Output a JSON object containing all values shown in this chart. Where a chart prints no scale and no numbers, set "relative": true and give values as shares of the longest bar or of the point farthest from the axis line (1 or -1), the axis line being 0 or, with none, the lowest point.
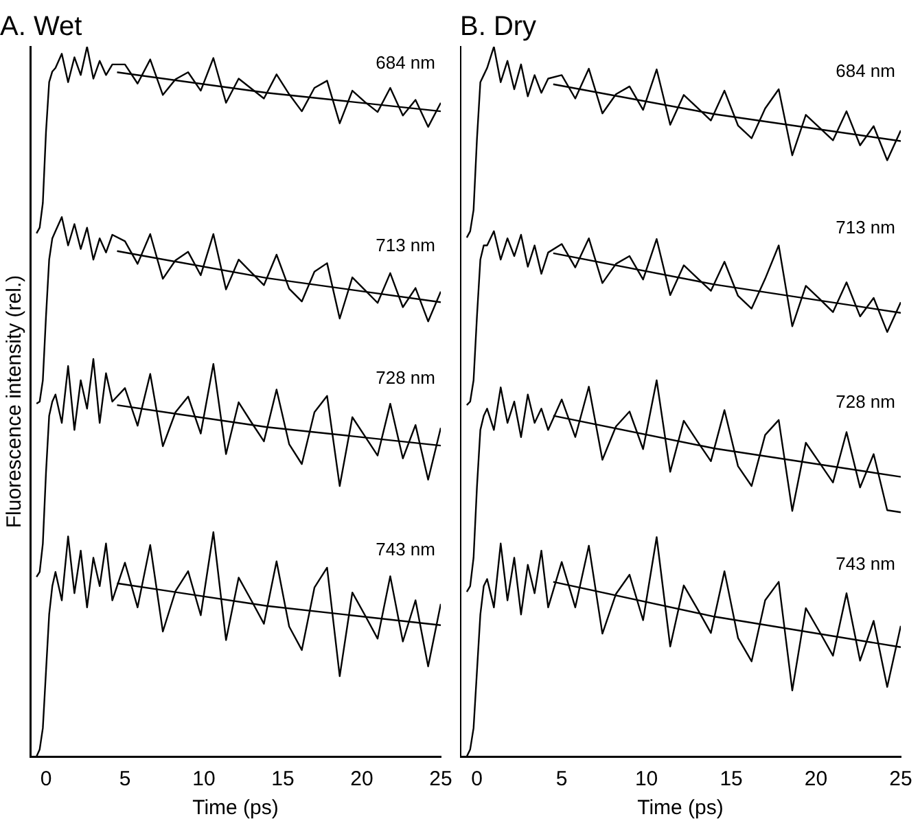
{
  "chart_data": [
    {
      "type": "line",
      "title": "A. Wet",
      "xlabel": "Time (ps)",
      "ylabel": "Fluorescence intensity (rel.)",
      "relative": true,
      "xlim": [
        -1,
        25
      ],
      "xticks": [
        0,
        5,
        10,
        15,
        20,
        25
      ],
      "x": [
        -0.6,
        -0.4,
        -0.2,
        0,
        0.2,
        0.4,
        0.6,
        1,
        1.4,
        1.8,
        2.2,
        2.6,
        3,
        3.4,
        3.8,
        4.2,
        5,
        5.8,
        6.6,
        7.4,
        8.2,
        9,
        9.8,
        10.6,
        11.4,
        12.2,
        13,
        13.8,
        14.6,
        15.4,
        16.2,
        17,
        17.8,
        18.6,
        19.4,
        20.2,
        21,
        21.8,
        22.6,
        23.4,
        24.2,
        25
      ],
      "series": [
        {
          "name": "684 nm",
          "color": "#000000",
          "values": [
            0.737,
            0.745,
            0.78,
            0.88,
            0.95,
            0.965,
            0.97,
            0.99,
            0.95,
            0.985,
            0.96,
            1,
            0.955,
            0.98,
            0.96,
            0.975,
            0.975,
            0.948,
            0.982,
            0.932,
            0.954,
            0.964,
            0.938,
            0.984,
            0.921,
            0.955,
            0.941,
            0.927,
            0.961,
            0.933,
            0.909,
            0.942,
            0.952,
            0.892,
            0.938,
            0.922,
            0.908,
            0.942,
            0.903,
            0.925,
            0.887,
            0.921
          ]
        },
        {
          "name": "713 nm",
          "color": "#000000",
          "values": [
            0.497,
            0.5,
            0.53,
            0.62,
            0.7,
            0.73,
            0.74,
            0.76,
            0.72,
            0.75,
            0.715,
            0.745,
            0.7,
            0.73,
            0.71,
            0.735,
            0.726,
            0.694,
            0.736,
            0.673,
            0.699,
            0.711,
            0.678,
            0.736,
            0.658,
            0.7,
            0.682,
            0.664,
            0.707,
            0.659,
            0.641,
            0.683,
            0.695,
            0.617,
            0.675,
            0.657,
            0.639,
            0.681,
            0.633,
            0.66,
            0.613,
            0.655
          ]
        },
        {
          "name": "728 nm",
          "color": "#000000",
          "values": [
            0.253,
            0.26,
            0.3,
            0.4,
            0.48,
            0.5,
            0.51,
            0.47,
            0.55,
            0.46,
            0.53,
            0.49,
            0.56,
            0.47,
            0.54,
            0.5,
            0.519,
            0.466,
            0.539,
            0.437,
            0.485,
            0.507,
            0.455,
            0.553,
            0.426,
            0.499,
            0.471,
            0.444,
            0.517,
            0.44,
            0.412,
            0.485,
            0.508,
            0.381,
            0.478,
            0.451,
            0.424,
            0.497,
            0.42,
            0.467,
            0.39,
            0.463
          ]
        },
        {
          "name": "743 nm",
          "color": "#000000",
          "values": [
            0,
            0.01,
            0.04,
            0.12,
            0.2,
            0.24,
            0.26,
            0.22,
            0.31,
            0.23,
            0.29,
            0.21,
            0.28,
            0.24,
            0.3,
            0.22,
            0.273,
            0.21,
            0.298,
            0.176,
            0.233,
            0.261,
            0.199,
            0.316,
            0.164,
            0.252,
            0.22,
            0.187,
            0.275,
            0.183,
            0.15,
            0.238,
            0.266,
            0.113,
            0.231,
            0.199,
            0.166,
            0.254,
            0.162,
            0.22,
            0.127,
            0.215
          ]
        },
        {
          "color": "#000000",
          "x": [
            4.5,
            14,
            25
          ],
          "values": [
            0.964,
            0.935,
            0.909
          ]
        },
        {
          "color": "#000000",
          "x": [
            4.5,
            14,
            25
          ],
          "values": [
            0.712,
            0.674,
            0.64
          ]
        },
        {
          "color": "#000000",
          "x": [
            4.5,
            14,
            25
          ],
          "values": [
            0.495,
            0.464,
            0.438
          ]
        },
        {
          "color": "#000000",
          "x": [
            4.5,
            14,
            25
          ],
          "values": [
            0.244,
            0.212,
            0.185
          ]
        }
      ]
    },
    {
      "type": "line",
      "title": "B. Dry",
      "xlabel": "Time (ps)",
      "relative": true,
      "xlim": [
        -1,
        25
      ],
      "xticks": [
        0,
        5,
        10,
        15,
        20,
        25
      ],
      "x": [
        -0.6,
        -0.4,
        -0.2,
        0,
        0.2,
        0.4,
        0.6,
        1,
        1.4,
        1.8,
        2.2,
        2.6,
        3,
        3.4,
        3.8,
        4.2,
        5,
        5.8,
        6.6,
        7.4,
        8.2,
        9,
        9.8,
        10.6,
        11.4,
        12.2,
        13,
        13.8,
        14.6,
        15.4,
        16.2,
        17,
        17.8,
        18.6,
        19.4,
        20.2,
        21,
        21.8,
        22.6,
        23.4,
        24.2,
        25
      ],
      "series": [
        {
          "name": "684 nm",
          "color": "#000000",
          "values": [
            0.731,
            0.74,
            0.77,
            0.87,
            0.95,
            0.96,
            0.97,
            1,
            0.95,
            0.98,
            0.94,
            0.975,
            0.93,
            0.96,
            0.935,
            0.955,
            0.96,
            0.927,
            0.969,
            0.906,
            0.933,
            0.944,
            0.911,
            0.968,
            0.89,
            0.932,
            0.914,
            0.896,
            0.938,
            0.889,
            0.871,
            0.913,
            0.94,
            0.847,
            0.904,
            0.886,
            0.868,
            0.909,
            0.861,
            0.888,
            0.84,
            0.882
          ]
        },
        {
          "name": "713 nm",
          "color": "#000000",
          "values": [
            0.495,
            0.5,
            0.53,
            0.62,
            0.7,
            0.72,
            0.72,
            0.74,
            0.7,
            0.73,
            0.705,
            0.735,
            0.69,
            0.72,
            0.68,
            0.71,
            0.722,
            0.689,
            0.73,
            0.667,
            0.694,
            0.705,
            0.672,
            0.729,
            0.65,
            0.692,
            0.674,
            0.656,
            0.697,
            0.649,
            0.631,
            0.673,
            0.72,
            0.606,
            0.663,
            0.645,
            0.626,
            0.668,
            0.62,
            0.646,
            0.598,
            0.64
          ]
        },
        {
          "name": "728 nm",
          "color": "#000000",
          "values": [
            0.232,
            0.24,
            0.28,
            0.38,
            0.46,
            0.48,
            0.49,
            0.46,
            0.52,
            0.47,
            0.5,
            0.45,
            0.51,
            0.47,
            0.49,
            0.46,
            0.503,
            0.45,
            0.521,
            0.418,
            0.465,
            0.486,
            0.433,
            0.53,
            0.401,
            0.473,
            0.444,
            0.416,
            0.488,
            0.409,
            0.381,
            0.453,
            0.474,
            0.346,
            0.442,
            0.414,
            0.386,
            0.457,
            0.379,
            0.426,
            0.347,
            0.344
          ]
        },
        {
          "name": "743 nm",
          "color": "#000000",
          "values": [
            0,
            0.01,
            0.04,
            0.12,
            0.2,
            0.24,
            0.25,
            0.21,
            0.3,
            0.22,
            0.28,
            0.2,
            0.27,
            0.23,
            0.29,
            0.21,
            0.274,
            0.21,
            0.297,
            0.173,
            0.229,
            0.256,
            0.192,
            0.309,
            0.155,
            0.241,
            0.208,
            0.174,
            0.261,
            0.167,
            0.134,
            0.22,
            0.246,
            0.093,
            0.209,
            0.176,
            0.142,
            0.23,
            0.135,
            0.191,
            0.098,
            0.184
          ]
        },
        {
          "color": "#000000",
          "x": [
            4.5,
            14,
            25
          ],
          "values": [
            0.947,
            0.905,
            0.867
          ]
        },
        {
          "color": "#000000",
          "x": [
            4.5,
            14,
            25
          ],
          "values": [
            0.709,
            0.665,
            0.625
          ]
        },
        {
          "color": "#000000",
          "x": [
            4.5,
            14,
            25
          ],
          "values": [
            0.48,
            0.434,
            0.394
          ]
        },
        {
          "color": "#000000",
          "x": [
            4.5,
            14,
            25
          ],
          "values": [
            0.246,
            0.197,
            0.154
          ]
        }
      ]
    }
  ]
}
